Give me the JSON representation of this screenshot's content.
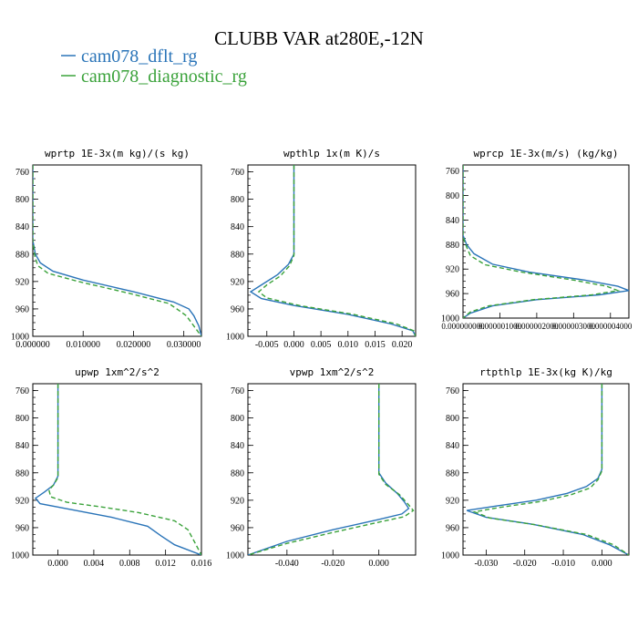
{
  "figure": {
    "title": "CLUBB VAR at280E,-12N",
    "legend": [
      {
        "name": "cam078_dflt_rg",
        "color": "#2a74b8",
        "dash": "solid"
      },
      {
        "name": "cam078_diagnostic_rg",
        "color": "#3aa23a",
        "dash": "dashed"
      }
    ]
  },
  "chart_data": [
    {
      "type": "line",
      "title": "wprtp  1E-3x(m kg)/(s kg)",
      "xlim": [
        0,
        0.0335
      ],
      "ylim": [
        1000,
        750
      ],
      "yticks": [
        760,
        800,
        840,
        880,
        920,
        960,
        1000
      ],
      "xticks": [
        0,
        0.01,
        0.02,
        0.03
      ],
      "xtick_labels": [
        "0.000000",
        "0.010000",
        "0.020000",
        "0.030000"
      ],
      "series": [
        {
          "name": "cam078_dflt_rg",
          "points": [
            [
              0,
              750
            ],
            [
              0,
              860
            ],
            [
              0.0005,
              880
            ],
            [
              0.0015,
              893
            ],
            [
              0.004,
              905
            ],
            [
              0.01,
              918
            ],
            [
              0.02,
              935
            ],
            [
              0.028,
              950
            ],
            [
              0.031,
              960
            ],
            [
              0.032,
              970
            ],
            [
              0.033,
              985
            ],
            [
              0.0335,
              1000
            ]
          ]
        },
        {
          "name": "cam078_diagnostic_rg",
          "points": [
            [
              0,
              750
            ],
            [
              0,
              862
            ],
            [
              0.0004,
              883
            ],
            [
              0.001,
              897
            ],
            [
              0.003,
              908
            ],
            [
              0.009,
              920
            ],
            [
              0.019,
              937
            ],
            [
              0.027,
              952
            ],
            [
              0.029,
              962
            ],
            [
              0.0305,
              970
            ],
            [
              0.032,
              985
            ],
            [
              0.0335,
              1000
            ]
          ]
        }
      ]
    },
    {
      "type": "line",
      "title": "wpthlp  1x(m K)/s",
      "xlim": [
        -0.0085,
        0.0225
      ],
      "ylim": [
        1000,
        750
      ],
      "yticks": [
        760,
        800,
        840,
        880,
        920,
        960,
        1000
      ],
      "xticks": [
        -0.005,
        0,
        0.005,
        0.01,
        0.015,
        0.02
      ],
      "xtick_labels": [
        "-0.005",
        "0.000",
        "0.005",
        "0.010",
        "0.015",
        "0.020"
      ],
      "series": [
        {
          "name": "cam078_dflt_rg",
          "points": [
            [
              0,
              750
            ],
            [
              0,
              880
            ],
            [
              -0.001,
              895
            ],
            [
              -0.003,
              910
            ],
            [
              -0.006,
              925
            ],
            [
              -0.008,
              935
            ],
            [
              -0.006,
              945
            ],
            [
              0,
              955
            ],
            [
              0.01,
              968
            ],
            [
              0.018,
              982
            ],
            [
              0.022,
              992
            ],
            [
              0.0225,
              1000
            ]
          ]
        },
        {
          "name": "cam078_diagnostic_rg",
          "points": [
            [
              0,
              750
            ],
            [
              0,
              882
            ],
            [
              -0.0008,
              897
            ],
            [
              -0.0025,
              912
            ],
            [
              -0.005,
              925
            ],
            [
              -0.0065,
              935
            ],
            [
              -0.005,
              944
            ],
            [
              0.001,
              955
            ],
            [
              0.011,
              968
            ],
            [
              0.019,
              982
            ],
            [
              0.0222,
              992
            ],
            [
              0.0225,
              1000
            ]
          ]
        }
      ]
    },
    {
      "type": "line",
      "title": "wprcp  1E-3x(m/s) (kg/kg)",
      "xlim": [
        0,
        4.5e-06
      ],
      "ylim": [
        1000,
        750
      ],
      "yticks": [
        760,
        800,
        840,
        880,
        920,
        960,
        1000
      ],
      "xticks": [
        0,
        1e-06,
        2e-06,
        3e-06,
        4e-06
      ],
      "xtick_labels": [
        "0.000000000",
        "0.000001000",
        "0.000002000",
        "0.000003000",
        "0.000004000"
      ],
      "series": [
        {
          "name": "cam078_dflt_rg",
          "points": [
            [
              0,
              750
            ],
            [
              0,
              865
            ],
            [
              1e-07,
              880
            ],
            [
              3e-07,
              895
            ],
            [
              8e-07,
              912
            ],
            [
              1.8e-06,
              925
            ],
            [
              3.3e-06,
              938
            ],
            [
              4.2e-06,
              948
            ],
            [
              4.5e-06,
              955
            ],
            [
              3.7e-06,
              962
            ],
            [
              2e-06,
              970
            ],
            [
              8e-07,
              980
            ],
            [
              2e-07,
              992
            ],
            [
              0,
              1000
            ]
          ]
        },
        {
          "name": "cam078_diagnostic_rg",
          "points": [
            [
              0,
              750
            ],
            [
              0,
              868
            ],
            [
              1e-07,
              884
            ],
            [
              2e-07,
              898
            ],
            [
              6e-07,
              913
            ],
            [
              1.6e-06,
              925
            ],
            [
              3e-06,
              938
            ],
            [
              3.9e-06,
              948
            ],
            [
              4.2e-06,
              955
            ],
            [
              3.5e-06,
              962
            ],
            [
              1.9e-06,
              970
            ],
            [
              7e-07,
              980
            ],
            [
              2e-07,
              990
            ],
            [
              0,
              1000
            ]
          ]
        }
      ]
    },
    {
      "type": "line",
      "title": "upwp  1xm^2/s^2",
      "xlim": [
        -0.0028,
        0.016
      ],
      "ylim": [
        1000,
        750
      ],
      "yticks": [
        760,
        800,
        840,
        880,
        920,
        960,
        1000
      ],
      "xticks": [
        0,
        0.004,
        0.008,
        0.012,
        0.016
      ],
      "xtick_labels": [
        "0.000",
        "0.004",
        "0.008",
        "0.012",
        "0.016"
      ],
      "series": [
        {
          "name": "cam078_dflt_rg",
          "points": [
            [
              0,
              750
            ],
            [
              0,
              885
            ],
            [
              -0.0005,
              898
            ],
            [
              -0.0015,
              908
            ],
            [
              -0.0025,
              917
            ],
            [
              -0.002,
              925
            ],
            [
              0.002,
              935
            ],
            [
              0.006,
              945
            ],
            [
              0.01,
              958
            ],
            [
              0.0115,
              972
            ],
            [
              0.013,
              985
            ],
            [
              0.016,
              1000
            ]
          ]
        },
        {
          "name": "cam078_diagnostic_rg",
          "points": [
            [
              0,
              750
            ],
            [
              0,
              887
            ],
            [
              -0.0005,
              898
            ],
            [
              -0.001,
              905
            ],
            [
              -0.0008,
              915
            ],
            [
              0.001,
              923
            ],
            [
              0.005,
              930
            ],
            [
              0.009,
              938
            ],
            [
              0.013,
              950
            ],
            [
              0.0145,
              963
            ],
            [
              0.0152,
              980
            ],
            [
              0.016,
              1000
            ]
          ]
        }
      ]
    },
    {
      "type": "line",
      "title": "vpwp  1xm^2/s^2",
      "xlim": [
        -0.057,
        0.016
      ],
      "ylim": [
        1000,
        750
      ],
      "yticks": [
        760,
        800,
        840,
        880,
        920,
        960,
        1000
      ],
      "xticks": [
        -0.04,
        -0.02,
        0
      ],
      "xtick_labels": [
        "-0.040",
        "-0.020",
        "0.000"
      ],
      "series": [
        {
          "name": "cam078_dflt_rg",
          "points": [
            [
              0,
              750
            ],
            [
              0,
              880
            ],
            [
              0.003,
              895
            ],
            [
              0.008,
              910
            ],
            [
              0.011,
              922
            ],
            [
              0.013,
              932
            ],
            [
              0.01,
              940
            ],
            [
              0,
              948
            ],
            [
              -0.02,
              963
            ],
            [
              -0.04,
              980
            ],
            [
              -0.057,
              1000
            ]
          ]
        },
        {
          "name": "cam078_diagnostic_rg",
          "points": [
            [
              0,
              750
            ],
            [
              0,
              882
            ],
            [
              0.003,
              897
            ],
            [
              0.009,
              912
            ],
            [
              0.0125,
              925
            ],
            [
              0.015,
              935
            ],
            [
              0.011,
              944
            ],
            [
              0,
              952
            ],
            [
              -0.02,
              967
            ],
            [
              -0.04,
              983
            ],
            [
              -0.057,
              1000
            ]
          ]
        }
      ]
    },
    {
      "type": "line",
      "title": "rtpthlp  1E-3x(kg K)/kg",
      "xlim": [
        -0.036,
        0.007
      ],
      "ylim": [
        1000,
        750
      ],
      "yticks": [
        760,
        800,
        840,
        880,
        920,
        960,
        1000
      ],
      "xticks": [
        -0.03,
        -0.02,
        -0.01,
        0
      ],
      "xtick_labels": [
        "-0.030",
        "-0.020",
        "-0.010",
        "0.000"
      ],
      "series": [
        {
          "name": "cam078_dflt_rg",
          "points": [
            [
              0,
              750
            ],
            [
              0,
              875
            ],
            [
              -0.001,
              888
            ],
            [
              -0.004,
              900
            ],
            [
              -0.009,
              910
            ],
            [
              -0.017,
              920
            ],
            [
              -0.027,
              928
            ],
            [
              -0.035,
              935
            ],
            [
              -0.03,
              945
            ],
            [
              -0.018,
              955
            ],
            [
              -0.005,
              970
            ],
            [
              0.002,
              985
            ],
            [
              0.007,
              1000
            ]
          ]
        },
        {
          "name": "cam078_diagnostic_rg",
          "points": [
            [
              0,
              750
            ],
            [
              0,
              877
            ],
            [
              -0.001,
              890
            ],
            [
              -0.003,
              902
            ],
            [
              -0.008,
              912
            ],
            [
              -0.016,
              922
            ],
            [
              -0.026,
              930
            ],
            [
              -0.033,
              937
            ],
            [
              -0.029,
              946
            ],
            [
              -0.017,
              956
            ],
            [
              -0.004,
              970
            ],
            [
              0.003,
              985
            ],
            [
              0.007,
              1000
            ]
          ]
        }
      ]
    }
  ]
}
